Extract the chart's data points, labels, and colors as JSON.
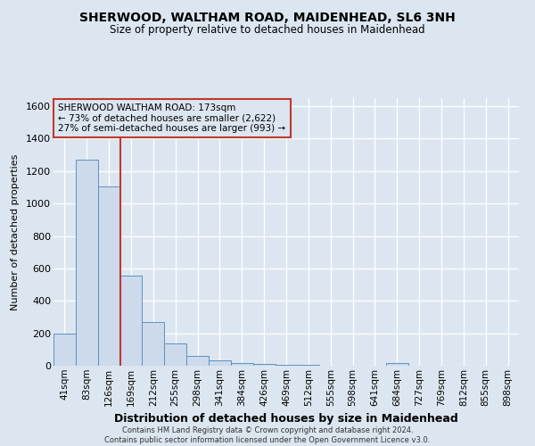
{
  "title": "SHERWOOD, WALTHAM ROAD, MAIDENHEAD, SL6 3NH",
  "subtitle": "Size of property relative to detached houses in Maidenhead",
  "xlabel": "Distribution of detached houses by size in Maidenhead",
  "ylabel": "Number of detached properties",
  "footnote1": "Contains HM Land Registry data © Crown copyright and database right 2024.",
  "footnote2": "Contains public sector information licensed under the Open Government Licence v3.0.",
  "annotation_line1": "SHERWOOD WALTHAM ROAD: 173sqm",
  "annotation_line2": "← 73% of detached houses are smaller (2,622)",
  "annotation_line3": "27% of semi-detached houses are larger (993) →",
  "bar_color": "#ccdaeb",
  "bar_edge_color": "#6090c0",
  "highlight_color": "#c0392b",
  "bg_color": "#dce6f0",
  "plot_bg_color": "#dce6f0",
  "grid_color": "#ffffff",
  "categories": [
    "41sqm",
    "83sqm",
    "126sqm",
    "169sqm",
    "212sqm",
    "255sqm",
    "298sqm",
    "341sqm",
    "384sqm",
    "426sqm",
    "469sqm",
    "512sqm",
    "555sqm",
    "598sqm",
    "641sqm",
    "684sqm",
    "727sqm",
    "769sqm",
    "812sqm",
    "855sqm",
    "898sqm"
  ],
  "values": [
    197,
    1270,
    1105,
    553,
    270,
    135,
    62,
    35,
    18,
    10,
    5,
    3,
    2,
    0,
    0,
    15,
    0,
    0,
    0,
    0,
    0
  ],
  "property_bar_index": 3,
  "ylim": [
    0,
    1650
  ],
  "yticks": [
    0,
    200,
    400,
    600,
    800,
    1000,
    1200,
    1400,
    1600
  ]
}
